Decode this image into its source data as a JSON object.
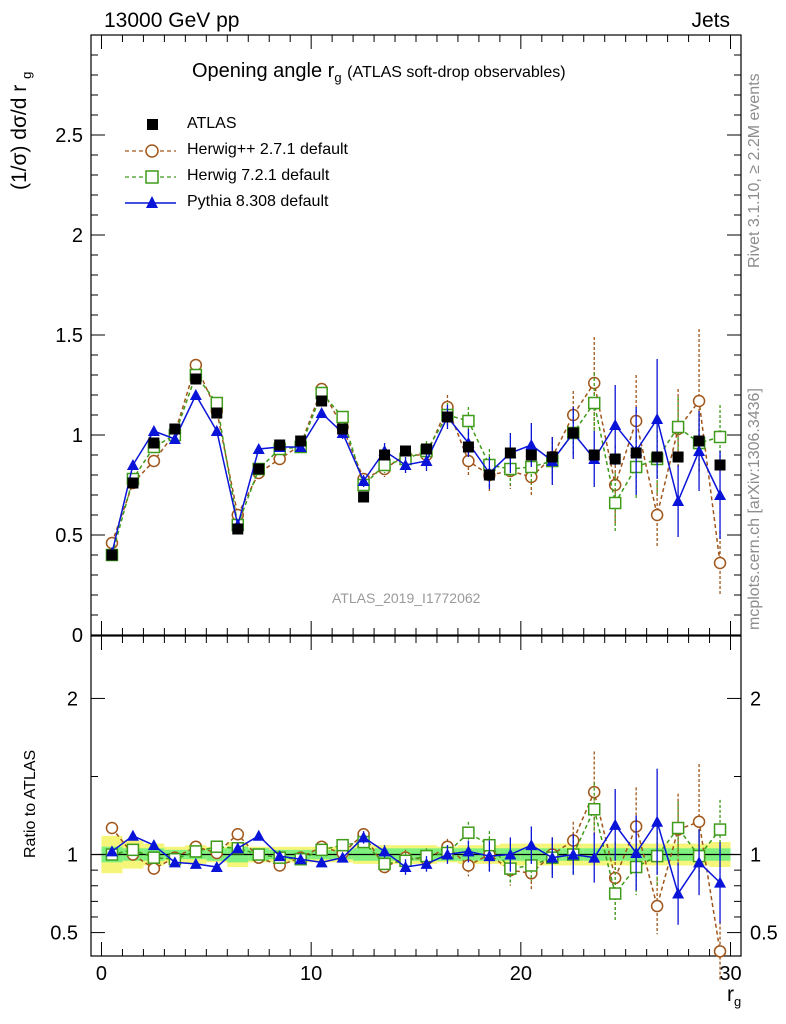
{
  "header": {
    "left": "13000 GeV pp",
    "right": "Jets"
  },
  "side_labels": {
    "rivet": "Rivet 3.1.10, ≥ 2.2M events",
    "mcplots": "mcplots.cern.ch [arXiv:1306.3436]"
  },
  "title": {
    "main": "Opening angle r",
    "sub": "g",
    "extra": "(ATLAS soft-drop observables)"
  },
  "watermark": "ATLAS_2019_I1772062",
  "axes": {
    "ylabel_main": "(1/σ) dσ/d r",
    "ylabel_sub": "g",
    "ratio_ylabel": "Ratio to ATLAS",
    "xlabel": "r",
    "xlabel_sub": "g"
  },
  "colors": {
    "atlas": "#000000",
    "herwigpp": "#a0561a",
    "herwig7": "#3f9b1a",
    "pythia": "#0a14d8",
    "band_inner": "#7df07d",
    "band_outer": "#f5f57a"
  },
  "chart_data": [
    {
      "type": "scatter",
      "panel": "main",
      "ylim": [
        0,
        3
      ],
      "xlim": [
        -0.5,
        30.5
      ],
      "y_ticks": [
        {
          "value": 0,
          "label": "0"
        },
        {
          "value": 0.5,
          "label": "0.5"
        },
        {
          "value": 1,
          "label": "1"
        },
        {
          "value": 1.5,
          "label": "1.5"
        },
        {
          "value": 2,
          "label": "2"
        },
        {
          "value": 2.5,
          "label": "2.5"
        }
      ],
      "x": [
        0.5,
        1.5,
        2.5,
        3.5,
        4.5,
        5.5,
        6.5,
        7.5,
        8.5,
        9.5,
        10.5,
        11.5,
        12.5,
        13.5,
        14.5,
        15.5,
        16.5,
        17.5,
        18.5,
        19.5,
        20.5,
        21.5,
        22.5,
        23.5,
        24.5,
        25.5,
        26.5,
        27.5,
        28.5,
        29.5
      ],
      "series": [
        {
          "name": "ATLAS",
          "key": "atlas",
          "values": [
            0.4,
            0.76,
            0.96,
            1.03,
            1.28,
            1.11,
            0.53,
            0.83,
            0.95,
            0.97,
            1.17,
            1.03,
            0.69,
            0.9,
            0.92,
            0.93,
            1.09,
            0.94,
            0.8,
            0.91,
            0.9,
            0.89,
            1.01,
            0.9,
            0.88,
            0.91,
            0.89,
            0.89,
            0.97,
            0.85
          ],
          "errors": [
            0,
            0,
            0,
            0,
            0,
            0,
            0,
            0,
            0,
            0,
            0,
            0,
            0,
            0,
            0,
            0,
            0,
            0,
            0,
            0,
            0,
            0,
            0,
            0,
            0,
            0,
            0,
            0,
            0,
            0
          ]
        },
        {
          "name": "Herwig++ 2.7.1 default",
          "key": "herwigpp",
          "values": [
            0.46,
            0.76,
            0.87,
            1.01,
            1.35,
            1.12,
            0.6,
            0.81,
            0.88,
            0.95,
            1.23,
            1.04,
            0.78,
            0.83,
            0.9,
            0.9,
            1.14,
            0.87,
            0.8,
            0.82,
            0.79,
            0.89,
            1.1,
            1.26,
            0.75,
            1.07,
            0.6,
            1.03,
            1.17,
            0.36
          ],
          "errors": [
            0.01,
            0.02,
            0.02,
            0.02,
            0.02,
            0.02,
            0.02,
            0.02,
            0.02,
            0.02,
            0.02,
            0.03,
            0.03,
            0.04,
            0.04,
            0.05,
            0.06,
            0.07,
            0.08,
            0.09,
            0.1,
            0.1,
            0.12,
            0.23,
            0.2,
            0.23,
            0.16,
            0.2,
            0.36,
            0.16
          ]
        },
        {
          "name": "Herwig 7.2.1 default",
          "key": "herwig7",
          "values": [
            0.4,
            0.78,
            0.94,
            1.0,
            1.3,
            1.16,
            0.55,
            0.83,
            0.93,
            0.94,
            1.21,
            1.09,
            0.75,
            0.85,
            0.88,
            0.92,
            1.1,
            1.07,
            0.85,
            0.83,
            0.84,
            0.87,
            1.01,
            1.16,
            0.66,
            0.84,
            0.88,
            1.04,
            0.96,
            0.99
          ],
          "errors": [
            0.01,
            0.02,
            0.02,
            0.02,
            0.02,
            0.02,
            0.02,
            0.02,
            0.02,
            0.02,
            0.02,
            0.03,
            0.03,
            0.04,
            0.04,
            0.05,
            0.06,
            0.07,
            0.08,
            0.08,
            0.09,
            0.1,
            0.11,
            0.15,
            0.15,
            0.16,
            0.17,
            0.15,
            0.15,
            0.16
          ]
        },
        {
          "name": "Pythia 8.308 default",
          "key": "pythia",
          "values": [
            0.41,
            0.85,
            1.02,
            0.98,
            1.2,
            1.02,
            0.55,
            0.93,
            0.94,
            0.94,
            1.11,
            1.01,
            0.77,
            0.92,
            0.85,
            0.87,
            1.09,
            0.96,
            0.81,
            0.91,
            0.95,
            0.87,
            1.01,
            0.88,
            1.05,
            0.92,
            1.08,
            0.67,
            0.92,
            0.7
          ],
          "errors": [
            0.01,
            0.02,
            0.02,
            0.02,
            0.02,
            0.02,
            0.02,
            0.02,
            0.02,
            0.02,
            0.02,
            0.03,
            0.03,
            0.04,
            0.04,
            0.05,
            0.06,
            0.07,
            0.08,
            0.1,
            0.11,
            0.12,
            0.13,
            0.14,
            0.2,
            0.22,
            0.3,
            0.18,
            0.2,
            0.22
          ]
        }
      ]
    },
    {
      "type": "scatter",
      "panel": "ratio",
      "ylabel": "Ratio to ATLAS",
      "xlabel": "r_g",
      "ylim": [
        0.35,
        2.4
      ],
      "xlim": [
        -0.5,
        30.5
      ],
      "y_ticks": [
        {
          "value": 0.5,
          "label": "0.5"
        },
        {
          "value": 1,
          "label": "1"
        },
        {
          "value": 2,
          "label": "2"
        }
      ],
      "x_ticks": [
        {
          "value": 0,
          "label": "0"
        },
        {
          "value": 10,
          "label": "10"
        },
        {
          "value": 20,
          "label": "20"
        },
        {
          "value": 30,
          "label": "30"
        }
      ],
      "x": [
        0.5,
        1.5,
        2.5,
        3.5,
        4.5,
        5.5,
        6.5,
        7.5,
        8.5,
        9.5,
        10.5,
        11.5,
        12.5,
        13.5,
        14.5,
        15.5,
        16.5,
        17.5,
        18.5,
        19.5,
        20.5,
        21.5,
        22.5,
        23.5,
        24.5,
        25.5,
        26.5,
        27.5,
        28.5,
        29.5
      ],
      "band_inner": [
        0.05,
        0.04,
        0.04,
        0.03,
        0.03,
        0.04,
        0.05,
        0.04,
        0.03,
        0.03,
        0.03,
        0.03,
        0.04,
        0.04,
        0.04,
        0.04,
        0.04,
        0.04,
        0.04,
        0.04,
        0.04,
        0.04,
        0.04,
        0.04,
        0.04,
        0.04,
        0.04,
        0.04,
        0.04,
        0.04
      ],
      "band_outer": [
        0.12,
        0.09,
        0.07,
        0.05,
        0.06,
        0.05,
        0.08,
        0.05,
        0.05,
        0.05,
        0.05,
        0.05,
        0.06,
        0.06,
        0.06,
        0.06,
        0.05,
        0.06,
        0.06,
        0.07,
        0.07,
        0.07,
        0.07,
        0.07,
        0.07,
        0.07,
        0.07,
        0.07,
        0.07,
        0.08
      ],
      "series": [
        {
          "name": "Herwig++ 2.7.1 default",
          "key": "herwigpp",
          "values": [
            1.17,
            1.0,
            0.91,
            0.98,
            1.05,
            1.01,
            1.13,
            0.98,
            0.93,
            0.98,
            1.05,
            1.01,
            1.13,
            0.92,
            0.98,
            0.97,
            1.05,
            0.93,
            1.0,
            0.9,
            0.88,
            1.0,
            1.09,
            1.4,
            0.85,
            1.18,
            0.67,
            1.16,
            1.21,
            0.38
          ],
          "errors": [
            0.02,
            0.02,
            0.02,
            0.02,
            0.02,
            0.02,
            0.03,
            0.02,
            0.02,
            0.02,
            0.02,
            0.03,
            0.04,
            0.04,
            0.05,
            0.05,
            0.05,
            0.07,
            0.1,
            0.1,
            0.11,
            0.11,
            0.12,
            0.26,
            0.23,
            0.25,
            0.18,
            0.23,
            0.37,
            0.19
          ]
        },
        {
          "name": "Herwig 7.2.1 default",
          "key": "herwig7",
          "values": [
            1.0,
            1.03,
            0.98,
            0.97,
            1.02,
            1.05,
            1.04,
            1.0,
            0.98,
            0.97,
            1.03,
            1.06,
            1.08,
            0.94,
            0.96,
            0.99,
            1.01,
            1.14,
            1.06,
            0.91,
            0.93,
            0.98,
            1.0,
            1.29,
            0.75,
            0.92,
            0.99,
            1.17,
            0.99,
            1.16
          ],
          "errors": [
            0.02,
            0.02,
            0.02,
            0.02,
            0.02,
            0.02,
            0.03,
            0.02,
            0.02,
            0.02,
            0.02,
            0.03,
            0.04,
            0.04,
            0.05,
            0.05,
            0.05,
            0.07,
            0.09,
            0.09,
            0.1,
            0.11,
            0.12,
            0.17,
            0.17,
            0.18,
            0.19,
            0.17,
            0.16,
            0.19
          ]
        },
        {
          "name": "Pythia 8.308 default",
          "key": "pythia",
          "values": [
            1.02,
            1.12,
            1.06,
            0.95,
            0.94,
            0.92,
            1.04,
            1.12,
            0.99,
            0.97,
            0.95,
            0.98,
            1.11,
            1.02,
            0.92,
            0.94,
            1.0,
            1.02,
            0.99,
            1.0,
            1.06,
            0.98,
            1.0,
            0.98,
            1.19,
            1.01,
            1.21,
            0.75,
            0.95,
            0.82
          ],
          "errors": [
            0.02,
            0.02,
            0.02,
            0.02,
            0.02,
            0.02,
            0.03,
            0.02,
            0.02,
            0.02,
            0.02,
            0.03,
            0.04,
            0.04,
            0.05,
            0.05,
            0.06,
            0.07,
            0.1,
            0.11,
            0.12,
            0.13,
            0.13,
            0.16,
            0.23,
            0.24,
            0.34,
            0.2,
            0.21,
            0.26
          ]
        }
      ]
    }
  ]
}
